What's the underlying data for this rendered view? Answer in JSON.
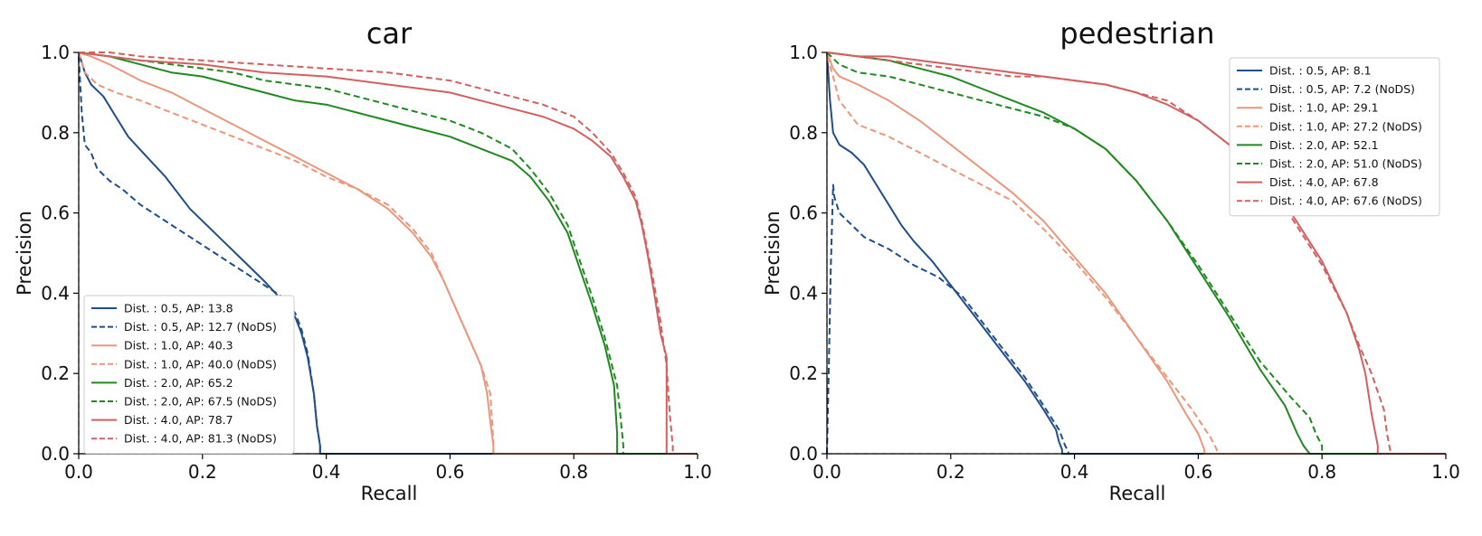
{
  "chart_data": [
    {
      "type": "line",
      "title": "car",
      "xlabel": "Recall",
      "ylabel": "Precision",
      "xlim": [
        0,
        1
      ],
      "ylim": [
        0,
        1
      ],
      "xticks": [
        "0.0",
        "0.2",
        "0.4",
        "0.6",
        "0.8",
        "1.0"
      ],
      "yticks": [
        "0.0",
        "0.2",
        "0.4",
        "0.6",
        "0.8",
        "1.0"
      ],
      "grid": false,
      "legend_position": "lower-left",
      "reference_lines": [
        {
          "style": "dashed",
          "color": "#cccccc",
          "x": [
            0,
            0
          ],
          "y": [
            0,
            1
          ]
        },
        {
          "style": "dashed",
          "color": "#cccccc",
          "x": [
            0,
            1
          ],
          "y": [
            0,
            0
          ]
        }
      ],
      "series": [
        {
          "name": "Dist. : 0.5, AP: 13.8",
          "color": "#1f4e8c",
          "style": "solid",
          "x": [
            0.0,
            0.01,
            0.02,
            0.04,
            0.06,
            0.08,
            0.11,
            0.14,
            0.18,
            0.22,
            0.26,
            0.3,
            0.33,
            0.35,
            0.36,
            0.37,
            0.38,
            0.385,
            0.39,
            0.39,
            1.0
          ],
          "y": [
            1.0,
            0.95,
            0.92,
            0.89,
            0.84,
            0.79,
            0.74,
            0.69,
            0.61,
            0.55,
            0.49,
            0.43,
            0.38,
            0.34,
            0.3,
            0.24,
            0.15,
            0.07,
            0.02,
            0.0,
            0.0
          ]
        },
        {
          "name": "Dist. : 0.5, AP: 12.7 (NoDS)",
          "color": "#1f4e8c",
          "style": "dashed",
          "x": [
            0.0,
            0.005,
            0.01,
            0.02,
            0.03,
            0.05,
            0.07,
            0.1,
            0.14,
            0.18,
            0.22,
            0.26,
            0.3,
            0.33,
            0.35,
            0.36,
            0.37,
            0.38,
            0.385,
            0.39,
            0.39,
            1.0
          ],
          "y": [
            0.99,
            0.85,
            0.77,
            0.75,
            0.71,
            0.68,
            0.66,
            0.62,
            0.58,
            0.54,
            0.5,
            0.46,
            0.42,
            0.39,
            0.35,
            0.31,
            0.25,
            0.15,
            0.07,
            0.02,
            0.0,
            0.0
          ]
        },
        {
          "name": "Dist. : 1.0, AP: 40.3",
          "color": "#ec967a",
          "style": "solid",
          "x": [
            0.0,
            0.02,
            0.05,
            0.1,
            0.15,
            0.2,
            0.25,
            0.3,
            0.35,
            0.4,
            0.45,
            0.5,
            0.54,
            0.57,
            0.59,
            0.61,
            0.63,
            0.65,
            0.66,
            0.665,
            0.67,
            0.67,
            1.0
          ],
          "y": [
            1.0,
            0.99,
            0.97,
            0.93,
            0.9,
            0.86,
            0.82,
            0.78,
            0.74,
            0.7,
            0.66,
            0.61,
            0.55,
            0.49,
            0.43,
            0.36,
            0.29,
            0.22,
            0.15,
            0.08,
            0.02,
            0.0,
            0.0
          ]
        },
        {
          "name": "Dist. : 1.0, AP: 40.0 (NoDS)",
          "color": "#ec967a",
          "style": "dashed",
          "x": [
            0.0,
            0.01,
            0.03,
            0.06,
            0.1,
            0.15,
            0.2,
            0.25,
            0.3,
            0.35,
            0.4,
            0.45,
            0.5,
            0.54,
            0.57,
            0.59,
            0.61,
            0.63,
            0.65,
            0.665,
            0.67,
            0.67,
            1.0
          ],
          "y": [
            1.0,
            0.95,
            0.92,
            0.9,
            0.88,
            0.85,
            0.82,
            0.79,
            0.76,
            0.73,
            0.69,
            0.66,
            0.62,
            0.56,
            0.5,
            0.43,
            0.36,
            0.29,
            0.22,
            0.15,
            0.03,
            0.0,
            0.0
          ]
        },
        {
          "name": "Dist. : 2.0, AP: 65.2",
          "color": "#1f8a1f",
          "style": "solid",
          "x": [
            0.0,
            0.05,
            0.1,
            0.15,
            0.2,
            0.25,
            0.3,
            0.35,
            0.4,
            0.45,
            0.5,
            0.55,
            0.6,
            0.65,
            0.7,
            0.73,
            0.76,
            0.79,
            0.81,
            0.83,
            0.85,
            0.865,
            0.87,
            0.87,
            1.0
          ],
          "y": [
            1.0,
            0.99,
            0.97,
            0.95,
            0.94,
            0.92,
            0.9,
            0.88,
            0.87,
            0.85,
            0.83,
            0.81,
            0.79,
            0.76,
            0.73,
            0.69,
            0.63,
            0.55,
            0.46,
            0.37,
            0.27,
            0.17,
            0.05,
            0.0,
            0.0
          ]
        },
        {
          "name": "Dist. : 2.0, AP: 67.5 (NoDS)",
          "color": "#1f8a1f",
          "style": "dashed",
          "x": [
            0.0,
            0.05,
            0.1,
            0.15,
            0.2,
            0.25,
            0.3,
            0.35,
            0.4,
            0.45,
            0.5,
            0.55,
            0.6,
            0.65,
            0.7,
            0.73,
            0.76,
            0.79,
            0.81,
            0.83,
            0.85,
            0.87,
            0.875,
            0.88,
            0.88,
            1.0
          ],
          "y": [
            1.0,
            0.99,
            0.98,
            0.97,
            0.96,
            0.95,
            0.93,
            0.92,
            0.91,
            0.89,
            0.87,
            0.85,
            0.83,
            0.8,
            0.76,
            0.71,
            0.65,
            0.57,
            0.48,
            0.39,
            0.29,
            0.17,
            0.1,
            0.02,
            0.0,
            0.0
          ]
        },
        {
          "name": "Dist. : 4.0, AP: 78.7",
          "color": "#d3605f",
          "style": "solid",
          "x": [
            0.0,
            0.05,
            0.1,
            0.2,
            0.3,
            0.4,
            0.5,
            0.6,
            0.65,
            0.7,
            0.75,
            0.8,
            0.83,
            0.86,
            0.88,
            0.9,
            0.91,
            0.92,
            0.93,
            0.94,
            0.95,
            0.95,
            0.95,
            1.0
          ],
          "y": [
            1.0,
            0.99,
            0.98,
            0.97,
            0.95,
            0.94,
            0.92,
            0.9,
            0.88,
            0.86,
            0.84,
            0.81,
            0.78,
            0.74,
            0.69,
            0.63,
            0.57,
            0.49,
            0.4,
            0.3,
            0.24,
            0.05,
            0.0,
            0.0
          ]
        },
        {
          "name": "Dist. : 4.0, AP: 81.3 (NoDS)",
          "color": "#d3605f",
          "style": "dashed",
          "x": [
            0.0,
            0.05,
            0.1,
            0.2,
            0.3,
            0.4,
            0.5,
            0.6,
            0.65,
            0.7,
            0.75,
            0.8,
            0.83,
            0.86,
            0.88,
            0.9,
            0.91,
            0.92,
            0.93,
            0.94,
            0.95,
            0.955,
            0.96,
            0.96,
            1.0
          ],
          "y": [
            1.0,
            1.0,
            0.99,
            0.98,
            0.97,
            0.96,
            0.95,
            0.93,
            0.91,
            0.89,
            0.87,
            0.84,
            0.8,
            0.75,
            0.7,
            0.64,
            0.58,
            0.5,
            0.42,
            0.33,
            0.22,
            0.1,
            0.02,
            0.0,
            0.0
          ]
        }
      ]
    },
    {
      "type": "line",
      "title": "pedestrian",
      "xlabel": "Recall",
      "ylabel": "Precision",
      "xlim": [
        0,
        1
      ],
      "ylim": [
        0,
        1
      ],
      "xticks": [
        "0.0",
        "0.2",
        "0.4",
        "0.6",
        "0.8",
        "1.0"
      ],
      "yticks": [
        "0.0",
        "0.2",
        "0.4",
        "0.6",
        "0.8",
        "1.0"
      ],
      "grid": false,
      "legend_position": "top-right",
      "reference_lines": [
        {
          "style": "dashed",
          "color": "#cccccc",
          "x": [
            0,
            0
          ],
          "y": [
            0,
            1
          ]
        },
        {
          "style": "dashed",
          "color": "#cccccc",
          "x": [
            0,
            1
          ],
          "y": [
            0,
            0
          ]
        }
      ],
      "series": [
        {
          "name": "Dist. : 0.5, AP: 8.1",
          "color": "#1f4e8c",
          "style": "solid",
          "x": [
            0.0,
            0.005,
            0.01,
            0.02,
            0.04,
            0.06,
            0.08,
            0.1,
            0.12,
            0.14,
            0.17,
            0.2,
            0.24,
            0.28,
            0.32,
            0.35,
            0.37,
            0.375,
            0.38,
            0.38,
            1.0
          ],
          "y": [
            1.0,
            0.88,
            0.8,
            0.77,
            0.75,
            0.72,
            0.67,
            0.62,
            0.57,
            0.53,
            0.48,
            0.42,
            0.34,
            0.26,
            0.18,
            0.11,
            0.06,
            0.03,
            0.01,
            0.0,
            0.0
          ]
        },
        {
          "name": "Dist. : 0.5, AP: 7.2 (NoDS)",
          "color": "#1f4e8c",
          "style": "dashed",
          "x": [
            0.0,
            0.003,
            0.006,
            0.01,
            0.012,
            0.02,
            0.04,
            0.06,
            0.1,
            0.14,
            0.18,
            0.22,
            0.25,
            0.28,
            0.32,
            0.35,
            0.375,
            0.38,
            0.385,
            0.39,
            0.39,
            1.0
          ],
          "y": [
            0.0,
            0.22,
            0.45,
            0.67,
            0.64,
            0.6,
            0.57,
            0.54,
            0.51,
            0.47,
            0.44,
            0.39,
            0.33,
            0.27,
            0.19,
            0.12,
            0.06,
            0.04,
            0.02,
            0.005,
            0.0,
            0.0
          ]
        },
        {
          "name": "Dist. : 1.0, AP: 29.1",
          "color": "#ec967a",
          "style": "solid",
          "x": [
            0.0,
            0.01,
            0.02,
            0.05,
            0.1,
            0.15,
            0.2,
            0.25,
            0.3,
            0.35,
            0.4,
            0.45,
            0.5,
            0.55,
            0.58,
            0.6,
            0.61,
            0.61,
            1.0
          ],
          "y": [
            1.0,
            0.96,
            0.94,
            0.92,
            0.88,
            0.83,
            0.77,
            0.71,
            0.65,
            0.58,
            0.49,
            0.4,
            0.29,
            0.18,
            0.1,
            0.05,
            0.01,
            0.0,
            0.0
          ]
        },
        {
          "name": "Dist. : 1.0, AP: 27.2 (NoDS)",
          "color": "#ec967a",
          "style": "dashed",
          "x": [
            0.0,
            0.01,
            0.02,
            0.05,
            0.1,
            0.15,
            0.2,
            0.25,
            0.3,
            0.35,
            0.4,
            0.45,
            0.5,
            0.55,
            0.59,
            0.62,
            0.63,
            0.63,
            1.0
          ],
          "y": [
            0.99,
            0.94,
            0.88,
            0.82,
            0.79,
            0.75,
            0.71,
            0.67,
            0.63,
            0.56,
            0.48,
            0.39,
            0.29,
            0.19,
            0.11,
            0.04,
            0.01,
            0.0,
            0.0
          ]
        },
        {
          "name": "Dist. : 2.0, AP: 52.1",
          "color": "#1f8a1f",
          "style": "solid",
          "x": [
            0.0,
            0.05,
            0.1,
            0.15,
            0.2,
            0.25,
            0.3,
            0.35,
            0.4,
            0.45,
            0.5,
            0.55,
            0.6,
            0.65,
            0.7,
            0.74,
            0.76,
            0.77,
            0.78,
            0.78,
            1.0
          ],
          "y": [
            1.0,
            0.99,
            0.98,
            0.96,
            0.94,
            0.91,
            0.88,
            0.85,
            0.81,
            0.76,
            0.68,
            0.58,
            0.46,
            0.34,
            0.21,
            0.12,
            0.05,
            0.02,
            0.0,
            0.0,
            0.0
          ]
        },
        {
          "name": "Dist. : 2.0, AP: 51.0 (NoDS)",
          "color": "#1f8a1f",
          "style": "dashed",
          "x": [
            0.0,
            0.02,
            0.05,
            0.1,
            0.15,
            0.2,
            0.25,
            0.3,
            0.35,
            0.4,
            0.45,
            0.5,
            0.55,
            0.6,
            0.65,
            0.7,
            0.75,
            0.78,
            0.79,
            0.8,
            0.8,
            1.0
          ],
          "y": [
            1.0,
            0.97,
            0.95,
            0.94,
            0.92,
            0.9,
            0.88,
            0.86,
            0.84,
            0.81,
            0.76,
            0.68,
            0.58,
            0.47,
            0.35,
            0.23,
            0.14,
            0.09,
            0.05,
            0.02,
            0.0,
            0.0
          ]
        },
        {
          "name": "Dist. : 4.0, AP: 67.8",
          "color": "#d3605f",
          "style": "solid",
          "x": [
            0.0,
            0.05,
            0.1,
            0.15,
            0.2,
            0.25,
            0.3,
            0.35,
            0.4,
            0.45,
            0.5,
            0.55,
            0.6,
            0.65,
            0.7,
            0.75,
            0.8,
            0.84,
            0.86,
            0.87,
            0.88,
            0.89,
            0.89,
            1.0
          ],
          "y": [
            1.0,
            0.99,
            0.99,
            0.98,
            0.97,
            0.96,
            0.95,
            0.94,
            0.93,
            0.92,
            0.9,
            0.87,
            0.83,
            0.77,
            0.69,
            0.6,
            0.48,
            0.35,
            0.26,
            0.2,
            0.1,
            0.02,
            0.0,
            0.0
          ]
        },
        {
          "name": "Dist. : 4.0, AP: 67.6 (NoDS)",
          "color": "#d3605f",
          "style": "dashed",
          "x": [
            0.0,
            0.05,
            0.1,
            0.15,
            0.2,
            0.25,
            0.3,
            0.35,
            0.4,
            0.45,
            0.5,
            0.55,
            0.6,
            0.65,
            0.7,
            0.75,
            0.8,
            0.84,
            0.86,
            0.88,
            0.9,
            0.905,
            0.91,
            0.91,
            1.0
          ],
          "y": [
            1.0,
            0.99,
            0.98,
            0.97,
            0.96,
            0.95,
            0.94,
            0.94,
            0.93,
            0.92,
            0.9,
            0.88,
            0.83,
            0.77,
            0.69,
            0.59,
            0.47,
            0.35,
            0.27,
            0.2,
            0.11,
            0.05,
            0.01,
            0.0,
            0.0
          ]
        }
      ]
    }
  ]
}
